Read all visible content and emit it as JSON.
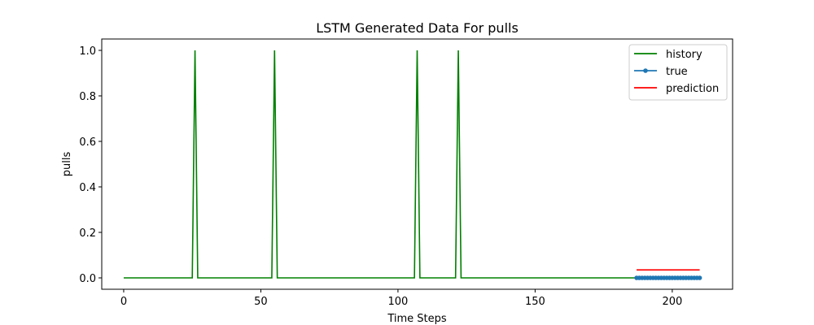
{
  "chart_data": {
    "type": "line",
    "title": "LSTM Generated Data For pulls",
    "xlabel": "Time Steps",
    "ylabel": "pulls",
    "xlim": [
      -8,
      222
    ],
    "ylim": [
      -0.05,
      1.05
    ],
    "xticks": [
      0,
      50,
      100,
      150,
      200
    ],
    "yticks": [
      0.0,
      0.2,
      0.4,
      0.6,
      0.8,
      1.0
    ],
    "xtick_labels": [
      "0",
      "50",
      "100",
      "150",
      "200"
    ],
    "ytick_labels": [
      "0.0",
      "0.2",
      "0.4",
      "0.6",
      "0.8",
      "1.0"
    ],
    "grid": false,
    "legend_position": "top-right",
    "series": [
      {
        "name": "history",
        "color": "#008000",
        "marker": "none",
        "x": [
          0,
          25,
          26,
          27,
          54,
          55,
          56,
          106,
          107,
          108,
          121,
          122,
          123,
          187
        ],
        "y": [
          0,
          0,
          1,
          0,
          0,
          1,
          0,
          0,
          1,
          0,
          0,
          1,
          0,
          0
        ]
      },
      {
        "name": "true",
        "color": "#1f77b4",
        "marker": "dot",
        "x": [
          187,
          188,
          189,
          190,
          191,
          192,
          193,
          194,
          195,
          196,
          197,
          198,
          199,
          200,
          201,
          202,
          203,
          204,
          205,
          206,
          207,
          208,
          209,
          210
        ],
        "y": [
          0,
          0,
          0,
          0,
          0,
          0,
          0,
          0,
          0,
          0,
          0,
          0,
          0,
          0,
          0,
          0,
          0,
          0,
          0,
          0,
          0,
          0,
          0,
          0
        ]
      },
      {
        "name": "prediction",
        "color": "#ff0000",
        "marker": "none",
        "x": [
          187,
          210
        ],
        "y": [
          0.035,
          0.035
        ]
      }
    ]
  }
}
